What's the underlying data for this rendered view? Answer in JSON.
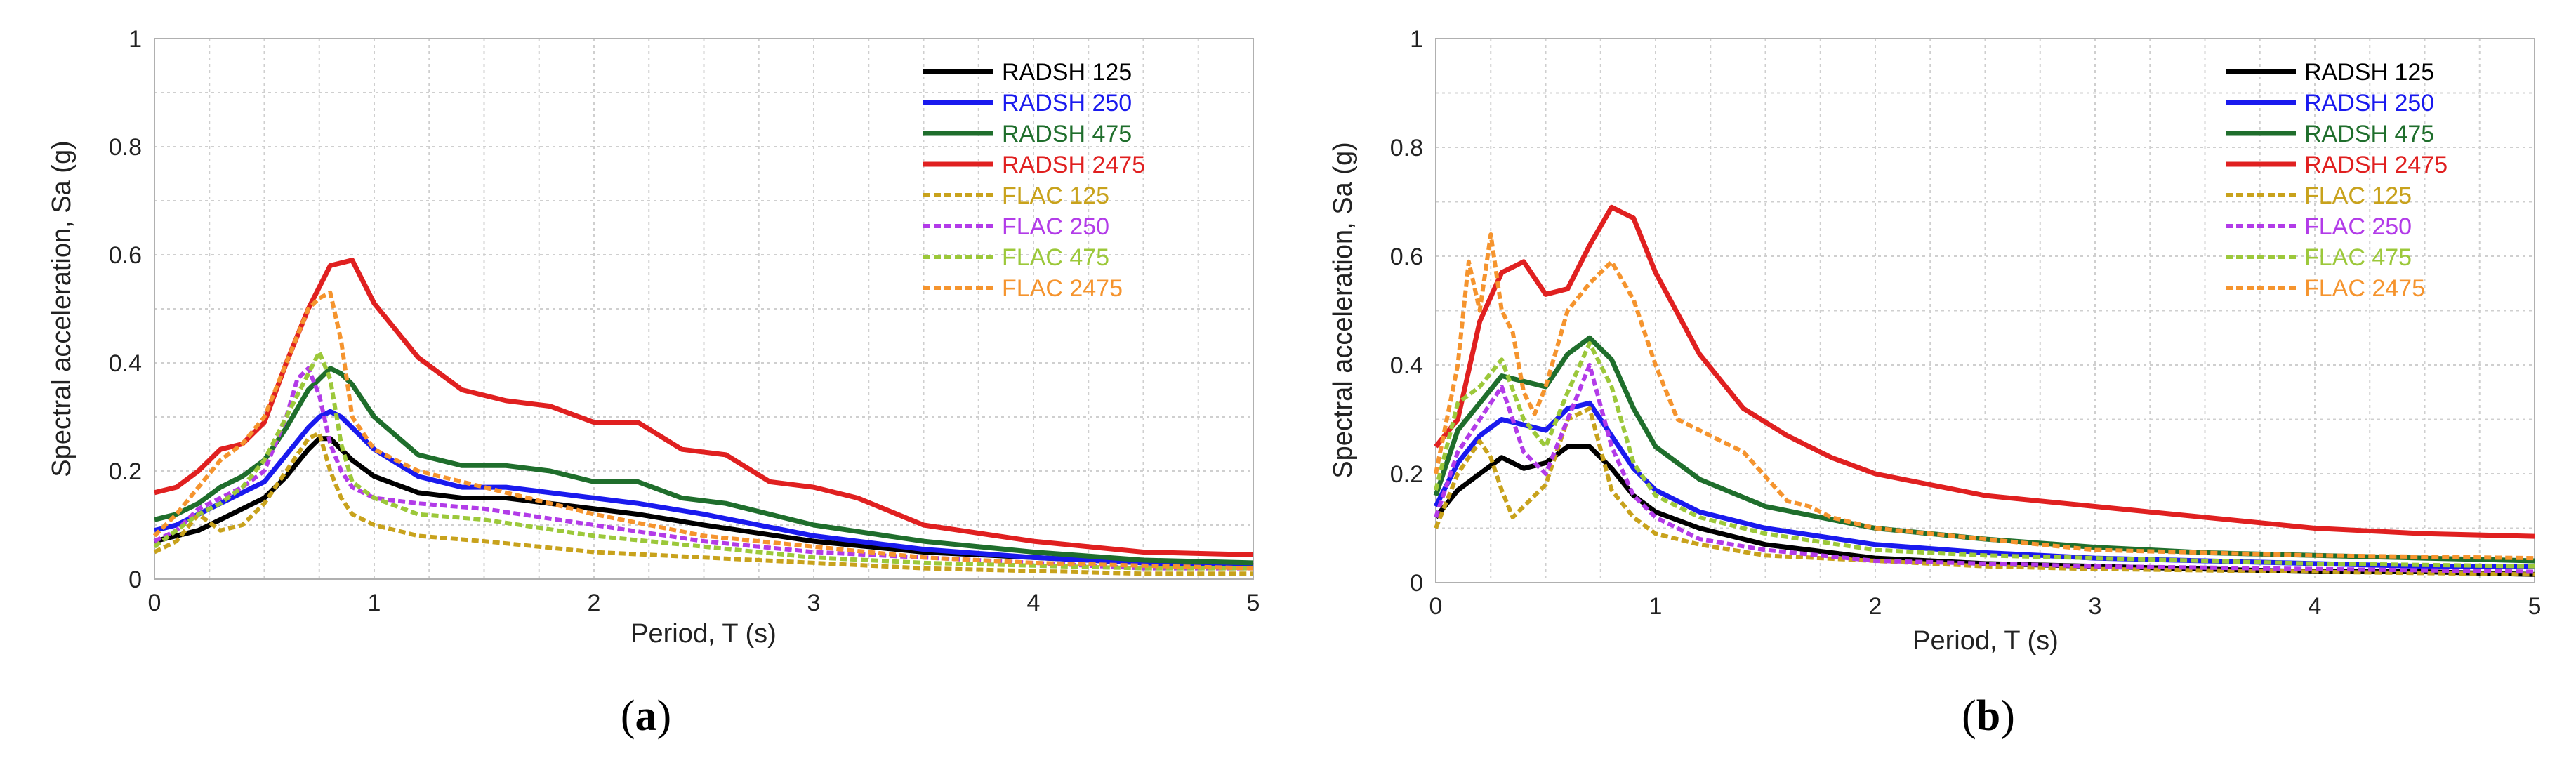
{
  "chart_data": [
    {
      "type": "line",
      "panel_label": {
        "open": "(",
        "letter": "a",
        "close": ")"
      },
      "xlabel": "Period, T (s)",
      "ylabel": "Spectral acceleration, Sa (g)",
      "xlim": [
        0,
        5
      ],
      "ylim": [
        0,
        1
      ],
      "xticks": [
        "0",
        "1",
        "2",
        "3",
        "4",
        "5"
      ],
      "yticks": [
        "0",
        "0.2",
        "0.4",
        "0.6",
        "0.8",
        "1"
      ],
      "grid": true,
      "legend_position": "top-right",
      "series": [
        {
          "name": "RADSH 125",
          "color": "#000000",
          "dash": "solid",
          "x": [
            0,
            0.1,
            0.2,
            0.3,
            0.4,
            0.5,
            0.6,
            0.7,
            0.75,
            0.8,
            0.85,
            0.9,
            1,
            1.2,
            1.4,
            1.6,
            1.8,
            2,
            2.2,
            2.5,
            3,
            3.5,
            4,
            4.5,
            5
          ],
          "y": [
            0.07,
            0.08,
            0.09,
            0.11,
            0.13,
            0.15,
            0.19,
            0.24,
            0.26,
            0.26,
            0.24,
            0.22,
            0.19,
            0.16,
            0.15,
            0.15,
            0.14,
            0.13,
            0.12,
            0.1,
            0.07,
            0.05,
            0.04,
            0.03,
            0.025
          ]
        },
        {
          "name": "RADSH 250",
          "color": "#1a1aee",
          "dash": "solid",
          "x": [
            0,
            0.1,
            0.2,
            0.3,
            0.4,
            0.5,
            0.6,
            0.7,
            0.75,
            0.8,
            0.85,
            0.9,
            1,
            1.2,
            1.4,
            1.6,
            1.8,
            2,
            2.2,
            2.5,
            3,
            3.5,
            4,
            4.5,
            5
          ],
          "y": [
            0.09,
            0.1,
            0.12,
            0.14,
            0.16,
            0.18,
            0.23,
            0.28,
            0.3,
            0.31,
            0.3,
            0.28,
            0.24,
            0.19,
            0.17,
            0.17,
            0.16,
            0.15,
            0.14,
            0.12,
            0.08,
            0.055,
            0.04,
            0.03,
            0.025
          ]
        },
        {
          "name": "RADSH 475",
          "color": "#1f6e2c",
          "dash": "solid",
          "x": [
            0,
            0.1,
            0.2,
            0.3,
            0.4,
            0.5,
            0.6,
            0.7,
            0.75,
            0.8,
            0.85,
            0.9,
            1,
            1.2,
            1.4,
            1.6,
            1.8,
            2,
            2.2,
            2.4,
            2.6,
            3,
            3.5,
            4,
            4.5,
            5
          ],
          "y": [
            0.11,
            0.12,
            0.14,
            0.17,
            0.19,
            0.22,
            0.28,
            0.35,
            0.37,
            0.39,
            0.38,
            0.36,
            0.3,
            0.23,
            0.21,
            0.21,
            0.2,
            0.18,
            0.18,
            0.15,
            0.14,
            0.1,
            0.07,
            0.05,
            0.035,
            0.03
          ]
        },
        {
          "name": "RADSH 2475",
          "color": "#e02020",
          "dash": "solid",
          "x": [
            0,
            0.1,
            0.2,
            0.3,
            0.4,
            0.5,
            0.6,
            0.7,
            0.8,
            0.9,
            1,
            1.2,
            1.4,
            1.6,
            1.8,
            2,
            2.2,
            2.4,
            2.6,
            2.8,
            3,
            3.2,
            3.5,
            4,
            4.5,
            5
          ],
          "y": [
            0.16,
            0.17,
            0.2,
            0.24,
            0.25,
            0.29,
            0.4,
            0.5,
            0.58,
            0.59,
            0.51,
            0.41,
            0.35,
            0.33,
            0.32,
            0.29,
            0.29,
            0.24,
            0.23,
            0.18,
            0.17,
            0.15,
            0.1,
            0.07,
            0.05,
            0.045
          ]
        },
        {
          "name": "FLAC 125",
          "color": "#c8a21c",
          "dash": "dashed",
          "x": [
            0,
            0.1,
            0.2,
            0.3,
            0.4,
            0.5,
            0.6,
            0.7,
            0.75,
            0.8,
            0.85,
            0.9,
            1,
            1.2,
            1.5,
            2,
            2.5,
            3,
            3.5,
            4,
            4.5,
            5
          ],
          "y": [
            0.05,
            0.07,
            0.12,
            0.09,
            0.1,
            0.14,
            0.2,
            0.26,
            0.27,
            0.2,
            0.15,
            0.12,
            0.1,
            0.08,
            0.07,
            0.05,
            0.04,
            0.03,
            0.02,
            0.015,
            0.01,
            0.01
          ]
        },
        {
          "name": "FLAC 250",
          "color": "#b23be8",
          "dash": "dashed",
          "x": [
            0,
            0.1,
            0.2,
            0.3,
            0.4,
            0.5,
            0.6,
            0.65,
            0.7,
            0.75,
            0.8,
            0.85,
            0.9,
            1,
            1.2,
            1.5,
            2,
            2.5,
            3,
            3.5,
            4,
            4.5,
            5
          ],
          "y": [
            0.07,
            0.09,
            0.13,
            0.15,
            0.17,
            0.2,
            0.3,
            0.37,
            0.39,
            0.34,
            0.25,
            0.2,
            0.17,
            0.15,
            0.14,
            0.13,
            0.1,
            0.07,
            0.05,
            0.04,
            0.03,
            0.02,
            0.02
          ]
        },
        {
          "name": "FLAC 475",
          "color": "#9cc83a",
          "dash": "dashed",
          "x": [
            0,
            0.1,
            0.2,
            0.3,
            0.4,
            0.5,
            0.6,
            0.7,
            0.75,
            0.8,
            0.85,
            0.9,
            1,
            1.2,
            1.5,
            2,
            2.5,
            3,
            3.5,
            4,
            4.5,
            5
          ],
          "y": [
            0.06,
            0.09,
            0.12,
            0.14,
            0.17,
            0.22,
            0.3,
            0.38,
            0.42,
            0.37,
            0.25,
            0.18,
            0.15,
            0.12,
            0.11,
            0.08,
            0.06,
            0.04,
            0.03,
            0.025,
            0.02,
            0.02
          ]
        },
        {
          "name": "FLAC 2475",
          "color": "#f5942e",
          "dash": "dashed",
          "x": [
            0,
            0.1,
            0.2,
            0.3,
            0.4,
            0.5,
            0.6,
            0.7,
            0.75,
            0.8,
            0.85,
            0.9,
            1,
            1.2,
            1.5,
            2,
            2.5,
            3,
            3.5,
            4,
            4.5,
            5
          ],
          "y": [
            0.08,
            0.12,
            0.17,
            0.22,
            0.25,
            0.3,
            0.4,
            0.5,
            0.52,
            0.53,
            0.44,
            0.3,
            0.24,
            0.2,
            0.17,
            0.12,
            0.08,
            0.06,
            0.04,
            0.03,
            0.025,
            0.02
          ]
        }
      ]
    },
    {
      "type": "line",
      "panel_label": {
        "open": "(",
        "letter": "b",
        "close": ")"
      },
      "xlabel": "Period, T (s)",
      "ylabel": "Spectral acceleration, Sa (g)",
      "xlim": [
        0,
        5
      ],
      "ylim": [
        0,
        1
      ],
      "xticks": [
        "0",
        "1",
        "2",
        "3",
        "4",
        "5"
      ],
      "yticks": [
        "0",
        "0.2",
        "0.4",
        "0.6",
        "0.8",
        "1"
      ],
      "grid": true,
      "legend_position": "top-right",
      "series": [
        {
          "name": "RADSH 125",
          "color": "#000000",
          "dash": "solid",
          "x": [
            0,
            0.1,
            0.2,
            0.3,
            0.4,
            0.5,
            0.6,
            0.7,
            0.8,
            0.9,
            1,
            1.2,
            1.5,
            2,
            2.5,
            3,
            3.5,
            4,
            4.5,
            5
          ],
          "y": [
            0.12,
            0.17,
            0.2,
            0.23,
            0.21,
            0.22,
            0.25,
            0.25,
            0.21,
            0.16,
            0.13,
            0.1,
            0.07,
            0.045,
            0.035,
            0.03,
            0.025,
            0.02,
            0.02,
            0.015
          ]
        },
        {
          "name": "RADSH 250",
          "color": "#1a1aee",
          "dash": "solid",
          "x": [
            0,
            0.1,
            0.2,
            0.3,
            0.4,
            0.5,
            0.6,
            0.7,
            0.8,
            0.9,
            1,
            1.2,
            1.5,
            2,
            2.5,
            3,
            3.5,
            4,
            4.5,
            5
          ],
          "y": [
            0.14,
            0.22,
            0.27,
            0.3,
            0.29,
            0.28,
            0.32,
            0.33,
            0.27,
            0.21,
            0.17,
            0.13,
            0.1,
            0.07,
            0.055,
            0.045,
            0.04,
            0.035,
            0.03,
            0.03
          ]
        },
        {
          "name": "RADSH 475",
          "color": "#1f6e2c",
          "dash": "solid",
          "x": [
            0,
            0.1,
            0.2,
            0.3,
            0.4,
            0.5,
            0.6,
            0.7,
            0.8,
            0.9,
            1,
            1.2,
            1.5,
            2,
            2.5,
            3,
            3.5,
            4,
            4.5,
            5
          ],
          "y": [
            0.16,
            0.28,
            0.33,
            0.38,
            0.37,
            0.36,
            0.42,
            0.45,
            0.41,
            0.32,
            0.25,
            0.19,
            0.14,
            0.1,
            0.08,
            0.065,
            0.055,
            0.05,
            0.045,
            0.04
          ]
        },
        {
          "name": "RADSH 2475",
          "color": "#e02020",
          "dash": "solid",
          "x": [
            0,
            0.1,
            0.2,
            0.3,
            0.4,
            0.5,
            0.6,
            0.7,
            0.8,
            0.9,
            1,
            1.2,
            1.4,
            1.6,
            1.8,
            2,
            2.5,
            3,
            3.5,
            4,
            4.5,
            5
          ],
          "y": [
            0.25,
            0.3,
            0.48,
            0.57,
            0.59,
            0.53,
            0.54,
            0.62,
            0.69,
            0.67,
            0.57,
            0.42,
            0.32,
            0.27,
            0.23,
            0.2,
            0.16,
            0.14,
            0.12,
            0.1,
            0.09,
            0.085
          ]
        },
        {
          "name": "FLAC 125",
          "color": "#c8a21c",
          "dash": "dashed",
          "x": [
            0,
            0.1,
            0.2,
            0.25,
            0.3,
            0.35,
            0.4,
            0.5,
            0.6,
            0.7,
            0.8,
            0.9,
            1,
            1.2,
            1.5,
            2,
            2.5,
            3,
            4,
            5
          ],
          "y": [
            0.1,
            0.2,
            0.26,
            0.23,
            0.17,
            0.12,
            0.14,
            0.18,
            0.3,
            0.32,
            0.17,
            0.12,
            0.09,
            0.07,
            0.05,
            0.04,
            0.03,
            0.025,
            0.02,
            0.015
          ]
        },
        {
          "name": "FLAC 250",
          "color": "#b23be8",
          "dash": "dashed",
          "x": [
            0,
            0.1,
            0.2,
            0.3,
            0.4,
            0.5,
            0.6,
            0.7,
            0.8,
            0.9,
            1,
            1.2,
            1.5,
            2,
            2.5,
            3,
            4,
            5
          ],
          "y": [
            0.12,
            0.24,
            0.3,
            0.36,
            0.24,
            0.2,
            0.3,
            0.4,
            0.25,
            0.16,
            0.12,
            0.08,
            0.06,
            0.04,
            0.035,
            0.03,
            0.025,
            0.02
          ]
        },
        {
          "name": "FLAC 475",
          "color": "#9cc83a",
          "dash": "dashed",
          "x": [
            0,
            0.1,
            0.2,
            0.3,
            0.4,
            0.5,
            0.6,
            0.7,
            0.8,
            0.9,
            1,
            1.2,
            1.5,
            2,
            2.5,
            3,
            4,
            5
          ],
          "y": [
            0.17,
            0.33,
            0.36,
            0.41,
            0.3,
            0.25,
            0.35,
            0.44,
            0.36,
            0.22,
            0.16,
            0.12,
            0.09,
            0.06,
            0.05,
            0.045,
            0.035,
            0.03
          ]
        },
        {
          "name": "FLAC 2475",
          "color": "#f5942e",
          "dash": "dashed",
          "x": [
            0,
            0.1,
            0.15,
            0.2,
            0.25,
            0.3,
            0.35,
            0.4,
            0.45,
            0.5,
            0.6,
            0.7,
            0.8,
            0.9,
            1,
            1.1,
            1.2,
            1.4,
            1.6,
            1.7,
            1.8,
            2,
            2.5,
            3,
            4,
            5
          ],
          "y": [
            0.2,
            0.4,
            0.59,
            0.5,
            0.64,
            0.5,
            0.46,
            0.35,
            0.31,
            0.36,
            0.5,
            0.55,
            0.59,
            0.52,
            0.4,
            0.3,
            0.28,
            0.24,
            0.15,
            0.14,
            0.12,
            0.1,
            0.08,
            0.06,
            0.05,
            0.045
          ]
        }
      ]
    }
  ]
}
